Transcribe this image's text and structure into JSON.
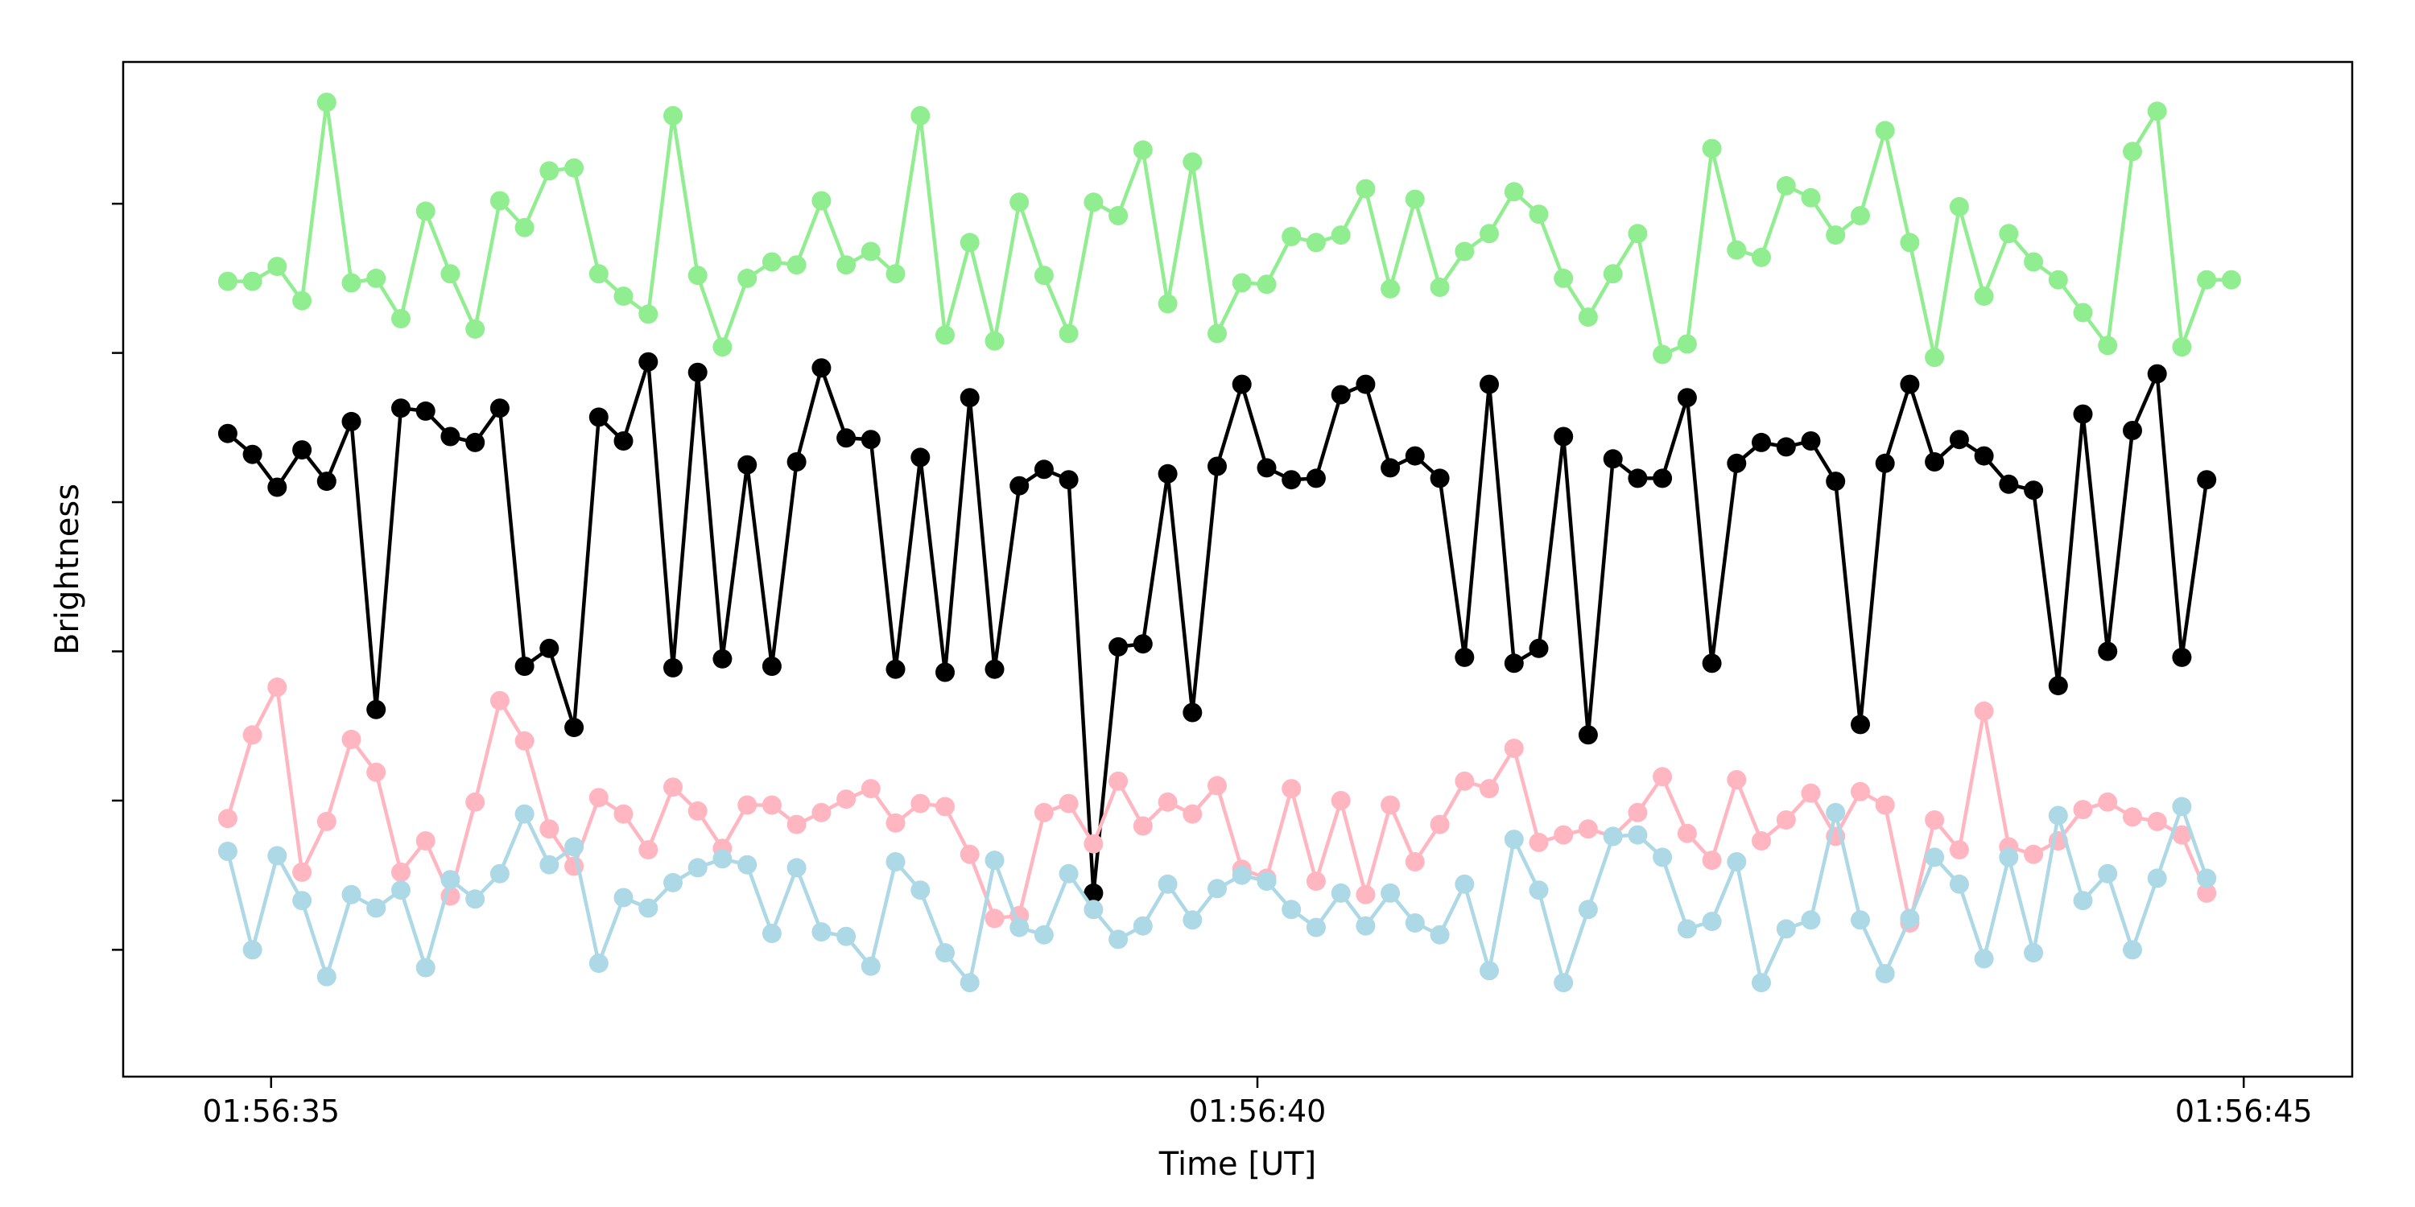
{
  "chart_data": {
    "type": "line",
    "xlabel": "Time [UT]",
    "ylabel": "Brightness",
    "x_unit": "seconds after 01:56:30 UT",
    "xlim": [
      4.25,
      15.55
    ],
    "ylim": [
      -2.35,
      4.45
    ],
    "x_ticks": [
      5,
      10,
      15
    ],
    "x_tick_labels": [
      "01:56:35",
      "01:56:40",
      "01:56:45"
    ],
    "y_ticks": [
      -1.5,
      -0.5,
      0.5,
      1.5,
      2.5,
      3.5
    ],
    "y_tick_labels": [
      "",
      "",
      "",
      "",
      "",
      ""
    ],
    "grid": false,
    "marker": "circle",
    "t_start": 4.78,
    "t_step": 0.1254,
    "series": [
      {
        "color": "#90ee90",
        "values": [
          2.98,
          2.98,
          3.08,
          2.85,
          4.18,
          2.97,
          3.0,
          2.73,
          3.45,
          3.03,
          2.66,
          3.52,
          3.34,
          3.72,
          3.74,
          3.03,
          2.88,
          2.76,
          4.09,
          3.02,
          2.54,
          3.0,
          3.11,
          3.09,
          3.52,
          3.09,
          3.18,
          3.03,
          4.09,
          2.62,
          3.24,
          2.58,
          3.51,
          3.02,
          2.63,
          3.51,
          3.42,
          3.86,
          2.83,
          3.78,
          2.63,
          2.97,
          2.96,
          3.28,
          3.24,
          3.29,
          3.6,
          2.93,
          3.53,
          2.94,
          3.18,
          3.3,
          3.58,
          3.43,
          3.0,
          2.74,
          3.03,
          3.3,
          2.49,
          2.56,
          3.87,
          3.19,
          3.14,
          3.62,
          3.54,
          3.29,
          3.42,
          3.99,
          3.24,
          2.47,
          3.48,
          2.88,
          3.3,
          3.11,
          2.99,
          2.77,
          2.55,
          3.85,
          4.12,
          2.54,
          2.99,
          2.99
        ]
      },
      {
        "color": "#000000",
        "values": [
          1.96,
          1.82,
          1.6,
          1.85,
          1.64,
          2.04,
          0.11,
          2.13,
          2.11,
          1.94,
          1.9,
          2.13,
          0.4,
          0.52,
          -0.01,
          2.07,
          1.91,
          2.44,
          0.39,
          2.37,
          0.45,
          1.75,
          0.4,
          1.77,
          2.4,
          1.93,
          1.92,
          0.38,
          1.8,
          0.36,
          2.2,
          0.38,
          1.61,
          1.72,
          1.65,
          -1.12,
          0.53,
          0.55,
          1.69,
          0.09,
          1.74,
          2.29,
          1.73,
          1.65,
          1.66,
          2.22,
          2.29,
          1.73,
          1.81,
          1.66,
          0.46,
          2.29,
          0.42,
          0.52,
          1.94,
          -0.06,
          1.79,
          1.66,
          1.66,
          2.2,
          0.42,
          1.76,
          1.9,
          1.87,
          1.91,
          1.64,
          0.01,
          1.76,
          2.29,
          1.77,
          1.92,
          1.81,
          1.62,
          1.58,
          0.27,
          2.09,
          0.5,
          1.98,
          2.36,
          0.46,
          1.65
        ]
      },
      {
        "color": "#ffb6c1",
        "values": [
          -0.62,
          -0.06,
          0.26,
          -0.98,
          -0.64,
          -0.09,
          -0.31,
          -0.98,
          -0.77,
          -1.14,
          -0.51,
          0.17,
          -0.1,
          -0.69,
          -0.94,
          -0.48,
          -0.59,
          -0.83,
          -0.41,
          -0.57,
          -0.82,
          -0.53,
          -0.53,
          -0.66,
          -0.58,
          -0.49,
          -0.42,
          -0.65,
          -0.52,
          -0.54,
          -0.86,
          -1.29,
          -1.27,
          -0.58,
          -0.52,
          -0.79,
          -0.37,
          -0.67,
          -0.51,
          -0.59,
          -0.4,
          -0.96,
          -1.02,
          -0.42,
          -1.04,
          -0.5,
          -1.13,
          -0.53,
          -0.91,
          -0.66,
          -0.37,
          -0.42,
          -0.15,
          -0.78,
          -0.73,
          -0.69,
          -0.74,
          -0.58,
          -0.34,
          -0.72,
          -0.9,
          -0.36,
          -0.77,
          -0.63,
          -0.45,
          -0.74,
          -0.44,
          -0.53,
          -1.32,
          -0.63,
          -0.83,
          0.1,
          -0.81,
          -0.86,
          -0.77,
          -0.56,
          -0.51,
          -0.61,
          -0.64,
          -0.73,
          -1.12
        ]
      },
      {
        "color": "#add8e6",
        "values": [
          -0.84,
          -1.5,
          -0.87,
          -1.17,
          -1.68,
          -1.13,
          -1.22,
          -1.1,
          -1.62,
          -1.03,
          -1.16,
          -0.99,
          -0.59,
          -0.93,
          -0.81,
          -1.59,
          -1.15,
          -1.22,
          -1.05,
          -0.95,
          -0.89,
          -0.93,
          -1.39,
          -0.95,
          -1.38,
          -1.41,
          -1.61,
          -0.91,
          -1.1,
          -1.52,
          -1.72,
          -0.9,
          -1.35,
          -1.4,
          -0.99,
          -1.23,
          -1.43,
          -1.34,
          -1.06,
          -1.3,
          -1.09,
          -1.0,
          -1.04,
          -1.23,
          -1.35,
          -1.12,
          -1.34,
          -1.12,
          -1.32,
          -1.4,
          -1.06,
          -1.64,
          -0.76,
          -1.1,
          -1.72,
          -1.23,
          -0.74,
          -0.73,
          -0.88,
          -1.36,
          -1.31,
          -0.91,
          -1.72,
          -1.36,
          -1.3,
          -0.58,
          -1.3,
          -1.66,
          -1.29,
          -0.88,
          -1.06,
          -1.56,
          -0.88,
          -1.52,
          -0.6,
          -1.17,
          -0.99,
          -1.5,
          -1.02,
          -0.54,
          -1.02
        ]
      }
    ]
  }
}
